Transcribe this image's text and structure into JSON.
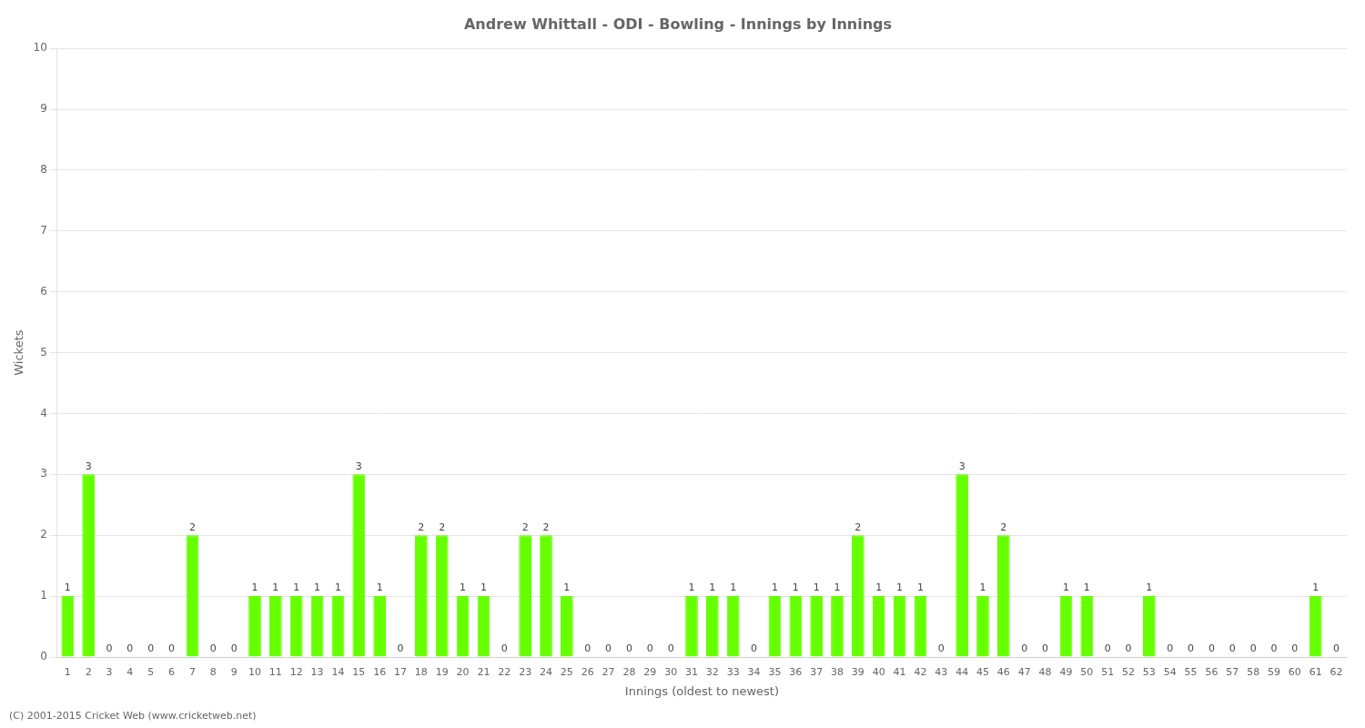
{
  "chart_data": {
    "type": "bar",
    "title": "Andrew Whittall - ODI - Bowling - Innings by Innings",
    "x_label": "Innings (oldest to newest)",
    "y_label": "Wickets",
    "annotations": [
      "(C) 2001-2015 Cricket Web (www.cricketweb.net)"
    ],
    "categories": [
      "1",
      "2",
      "3",
      "4",
      "5",
      "6",
      "7",
      "8",
      "9",
      "10",
      "11",
      "12",
      "13",
      "14",
      "15",
      "16",
      "17",
      "18",
      "19",
      "20",
      "21",
      "22",
      "23",
      "24",
      "25",
      "26",
      "27",
      "28",
      "29",
      "30",
      "31",
      "32",
      "33",
      "34",
      "35",
      "36",
      "37",
      "38",
      "39",
      "40",
      "41",
      "42",
      "43",
      "44",
      "45",
      "46",
      "47",
      "48",
      "49",
      "50",
      "51",
      "52",
      "53",
      "54",
      "55",
      "56",
      "57",
      "58",
      "59",
      "60",
      "61",
      "62"
    ],
    "values": [
      1,
      3,
      0,
      0,
      0,
      0,
      2,
      0,
      0,
      1,
      1,
      1,
      1,
      1,
      3,
      1,
      0,
      2,
      2,
      1,
      1,
      0,
      2,
      2,
      1,
      0,
      0,
      0,
      0,
      0,
      1,
      1,
      1,
      0,
      1,
      1,
      1,
      1,
      2,
      1,
      1,
      1,
      0,
      3,
      1,
      2,
      0,
      0,
      1,
      1,
      0,
      0,
      1,
      0,
      0,
      0,
      0,
      0,
      0,
      0,
      1,
      0
    ],
    "color": "#66FF00",
    "ylim": [
      0,
      10
    ],
    "yticks": [
      0,
      1,
      2,
      3,
      4,
      5,
      6,
      7,
      8,
      9,
      10
    ],
    "grid": true,
    "data_labels": true
  }
}
